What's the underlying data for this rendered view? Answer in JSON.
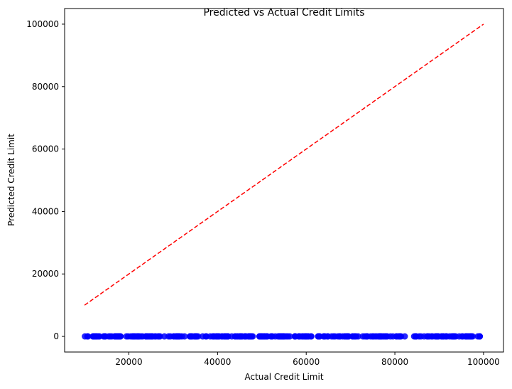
{
  "chart_data": {
    "type": "scatter",
    "title": "Predicted vs Actual Credit Limits",
    "xlabel": "Actual Credit Limit",
    "ylabel": "Predicted Credit Limit",
    "xlim": [
      5500,
      104500
    ],
    "ylim": [
      -5000,
      105000
    ],
    "x_ticks": [
      20000,
      40000,
      60000,
      80000,
      100000
    ],
    "y_ticks": [
      0,
      20000,
      40000,
      60000,
      80000,
      100000
    ],
    "grid": false,
    "point_color": "#0000ff",
    "reference_line": {
      "x": [
        10000,
        100000
      ],
      "y": [
        10000,
        100000
      ],
      "color": "#ff0000",
      "style": "dashed"
    },
    "points": {
      "x_range": [
        10000,
        100000
      ],
      "count": 300,
      "y_value": 0
    }
  }
}
